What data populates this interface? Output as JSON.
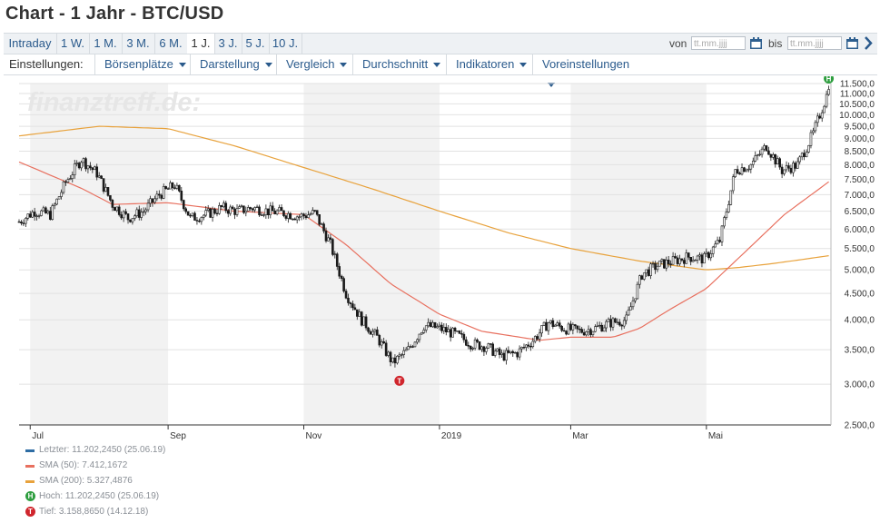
{
  "title": "Chart - 1 Jahr - BTC/USD",
  "range_tabs": [
    {
      "label": "Intraday",
      "active": false
    },
    {
      "label": "1 W.",
      "active": false
    },
    {
      "label": "1 M.",
      "active": false
    },
    {
      "label": "3 M.",
      "active": false
    },
    {
      "label": "6 M.",
      "active": false
    },
    {
      "label": "1 J.",
      "active": true
    },
    {
      "label": "3 J.",
      "active": false
    },
    {
      "label": "5 J.",
      "active": false
    },
    {
      "label": "10 J.",
      "active": false
    }
  ],
  "date_range": {
    "from_label": "von",
    "from_placeholder": "tt.mm.jjjj",
    "to_label": "bis",
    "to_placeholder": "tt.mm.jjjj",
    "go_icon": "chevron-right-icon",
    "calendar_icon": "calendar-icon"
  },
  "settings": {
    "label": "Einstellungen:",
    "menus": [
      "Börsenplätze",
      "Darstellung",
      "Vergleich",
      "Durchschnitt",
      "Indikatoren",
      "Voreinstellungen"
    ]
  },
  "watermark": "finanztreff.de:",
  "colors": {
    "price": "#1a1a1a",
    "sma50": "#e8705f",
    "sma200": "#e8a23c",
    "last": "#2e6da4",
    "high_badge": "#2e9e3f",
    "low_badge": "#d0262d",
    "band": "#f2f2f2"
  },
  "chart_data": {
    "type": "line",
    "subtype": "candlestick",
    "title": "Chart - 1 Jahr - BTC/USD",
    "y_scale": "log",
    "ylim": [
      2500,
      11500
    ],
    "y_ticks": [
      "11.500,0",
      "11.000,0",
      "10.500,0",
      "10.000,0",
      "9.500,0",
      "9.000,0",
      "8.500,0",
      "8.000,0",
      "7.500,0",
      "7.000,0",
      "6.500,0",
      "6.000,0",
      "5.500,0",
      "5.000,0",
      "4.500,0",
      "4.000,0",
      "3.500,0",
      "3.000,0",
      "2.500,0"
    ],
    "y_tick_values": [
      11500,
      11000,
      10500,
      10000,
      9500,
      9000,
      8500,
      8000,
      7500,
      7000,
      6500,
      6000,
      5500,
      5000,
      4500,
      4000,
      3500,
      3000,
      2500
    ],
    "x_ticks": [
      "Jul",
      "Sep",
      "Nov",
      "2019",
      "Mar",
      "Mai"
    ],
    "x_tick_dates": [
      "2018-07-01",
      "2018-09-01",
      "2018-11-01",
      "2019-01-01",
      "2019-03-01",
      "2019-05-01"
    ],
    "xlim": [
      "2018-06-26",
      "2019-06-26"
    ],
    "grid": true,
    "shaded_months": [
      [
        "2018-07-01",
        "2018-09-01"
      ],
      [
        "2018-11-01",
        "2019-01-01"
      ],
      [
        "2019-03-01",
        "2019-05-01"
      ]
    ],
    "series": [
      {
        "name": "Letzter",
        "kind": "price",
        "dates": [
          "2018-06-26",
          "2018-07-03",
          "2018-07-10",
          "2018-07-17",
          "2018-07-24",
          "2018-07-31",
          "2018-08-07",
          "2018-08-14",
          "2018-08-21",
          "2018-08-28",
          "2018-09-04",
          "2018-09-11",
          "2018-09-18",
          "2018-09-25",
          "2018-10-02",
          "2018-10-09",
          "2018-10-16",
          "2018-10-23",
          "2018-10-30",
          "2018-11-06",
          "2018-11-13",
          "2018-11-20",
          "2018-11-27",
          "2018-12-04",
          "2018-12-11",
          "2018-12-18",
          "2018-12-25",
          "2019-01-01",
          "2019-01-08",
          "2019-01-15",
          "2019-01-22",
          "2019-01-29",
          "2019-02-05",
          "2019-02-12",
          "2019-02-19",
          "2019-02-26",
          "2019-03-05",
          "2019-03-12",
          "2019-03-19",
          "2019-03-26",
          "2019-04-02",
          "2019-04-09",
          "2019-04-16",
          "2019-04-23",
          "2019-04-30",
          "2019-05-07",
          "2019-05-14",
          "2019-05-21",
          "2019-05-28",
          "2019-06-04",
          "2019-06-11",
          "2019-06-18",
          "2019-06-25"
        ],
        "values": [
          6200,
          6500,
          6400,
          7400,
          8200,
          7700,
          6700,
          6300,
          6500,
          7000,
          7300,
          6300,
          6400,
          6600,
          6500,
          6600,
          6500,
          6450,
          6350,
          6450,
          5600,
          4500,
          4000,
          3700,
          3300,
          3500,
          3900,
          3850,
          3750,
          3600,
          3550,
          3400,
          3450,
          3650,
          3950,
          3850,
          3800,
          3850,
          3950,
          4000,
          4900,
          5100,
          5200,
          5300,
          5250,
          5700,
          7800,
          8000,
          8700,
          7800,
          8000,
          9200,
          11202.245
        ]
      },
      {
        "name": "SMA (50)",
        "kind": "sma",
        "dates": [
          "2018-06-26",
          "2018-07-24",
          "2018-08-07",
          "2018-09-01",
          "2018-10-01",
          "2018-11-01",
          "2018-11-20",
          "2018-12-10",
          "2019-01-01",
          "2019-01-20",
          "2019-02-15",
          "2019-03-01",
          "2019-03-20",
          "2019-04-01",
          "2019-04-15",
          "2019-05-01",
          "2019-05-20",
          "2019-06-05",
          "2019-06-25"
        ],
        "values": [
          8100,
          7200,
          6700,
          6750,
          6500,
          6400,
          5600,
          4700,
          4100,
          3800,
          3650,
          3700,
          3700,
          3850,
          4200,
          4600,
          5500,
          6400,
          7412.1672
        ]
      },
      {
        "name": "SMA (200)",
        "kind": "sma",
        "dates": [
          "2018-06-26",
          "2018-08-01",
          "2018-09-01",
          "2018-10-01",
          "2018-11-01",
          "2018-12-01",
          "2019-01-01",
          "2019-02-01",
          "2019-03-01",
          "2019-04-01",
          "2019-05-01",
          "2019-05-15",
          "2019-06-01",
          "2019-06-25"
        ],
        "values": [
          9100,
          9500,
          9400,
          8700,
          7900,
          7200,
          6500,
          5900,
          5500,
          5200,
          5000,
          5050,
          5150,
          5327.4876
        ]
      }
    ],
    "markers": [
      {
        "label": "H",
        "date": "2019-06-25",
        "value": 11202.245
      },
      {
        "label": "T",
        "date": "2018-12-14",
        "value": 3158.865
      }
    ]
  },
  "legend": [
    {
      "key": "last",
      "mark": "line",
      "text": "Letzter: 11.202,2450 (25.06.19)"
    },
    {
      "key": "sma50",
      "mark": "line",
      "text": "SMA (50): 7.412,1672"
    },
    {
      "key": "sma200",
      "mark": "line",
      "text": "SMA (200): 5.327,4876"
    },
    {
      "key": "high_badge",
      "mark": "H",
      "text": "Hoch: 11.202,2450 (25.06.19)"
    },
    {
      "key": "low_badge",
      "mark": "T",
      "text": "Tief: 3.158,8650 (14.12.18)"
    }
  ]
}
